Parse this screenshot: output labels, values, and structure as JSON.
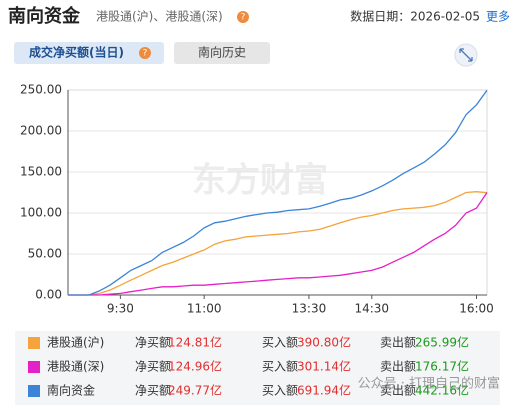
{
  "header": {
    "title": "南向资金",
    "subtitle": "港股通(沪)、港股通(深)",
    "date": "数据日期：2026-02-05",
    "more": "更多"
  },
  "tabs": [
    "成交净买额(当日)",
    "南向历史"
  ],
  "chart_data": {
    "type": "line",
    "watermark": "东方财富",
    "categories": [
      null,
      null,
      null,
      null,
      null,
      "9:30",
      null,
      null,
      null,
      null,
      null,
      null,
      null,
      "11:00",
      null,
      null,
      null,
      null,
      null,
      null,
      null,
      null,
      null,
      "13:30",
      null,
      null,
      null,
      null,
      null,
      "14:30",
      null,
      null,
      null,
      null,
      null,
      null,
      null,
      null,
      null,
      "16:00",
      null
    ],
    "ylim": [
      0,
      250
    ],
    "yticks": [
      {
        "value": 0,
        "label": "0.00"
      },
      {
        "value": 50,
        "label": "50.00"
      },
      {
        "value": 100,
        "label": "100.00"
      },
      {
        "value": 150,
        "label": "150.00"
      },
      {
        "value": 200,
        "label": "200.00"
      },
      {
        "value": 250,
        "label": "250.00"
      }
    ],
    "grid": true,
    "series": [
      {
        "name": "港股通(沪)",
        "color": "#f5a33a",
        "values": [
          0,
          0,
          0,
          2,
          6,
          12,
          18,
          24,
          30,
          36,
          40,
          45,
          50,
          55,
          62,
          66,
          68,
          71,
          72,
          73,
          74,
          75,
          77,
          78,
          80,
          84,
          88,
          92,
          95,
          97,
          100,
          103,
          105,
          106,
          107,
          109,
          113,
          119,
          125,
          126,
          124.81
        ]
      },
      {
        "name": "港股通(深)",
        "color": "#e620c8",
        "values": [
          0,
          0,
          0,
          0,
          1,
          2,
          4,
          6,
          8,
          10,
          10,
          11,
          12,
          12,
          13,
          14,
          15,
          16,
          17,
          18,
          19,
          20,
          21,
          21,
          22,
          23,
          24,
          26,
          28,
          30,
          34,
          40,
          46,
          52,
          60,
          68,
          75,
          85,
          100,
          106,
          124.96
        ]
      },
      {
        "name": "南向资金",
        "color": "#3c84d8",
        "values": [
          0,
          0,
          0,
          5,
          12,
          21,
          30,
          36,
          42,
          52,
          58,
          64,
          72,
          82,
          88,
          90,
          93,
          96,
          98,
          100,
          101,
          103,
          104,
          105,
          108,
          112,
          116,
          118,
          122,
          127,
          133,
          140,
          148,
          155,
          162,
          172,
          183,
          198,
          220,
          232,
          249.77
        ]
      }
    ],
    "summary": {
      "columns": [
        "净买额",
        "买入额",
        "卖出额"
      ],
      "rows": [
        [
          "124.81亿",
          "390.80亿",
          "265.99亿"
        ],
        [
          "124.96亿",
          "301.14亿",
          "176.17亿"
        ],
        [
          "249.77亿",
          "691.94亿",
          "442.16亿"
        ]
      ]
    }
  },
  "footer_watermark": "公众号 · 打理自己的财富"
}
